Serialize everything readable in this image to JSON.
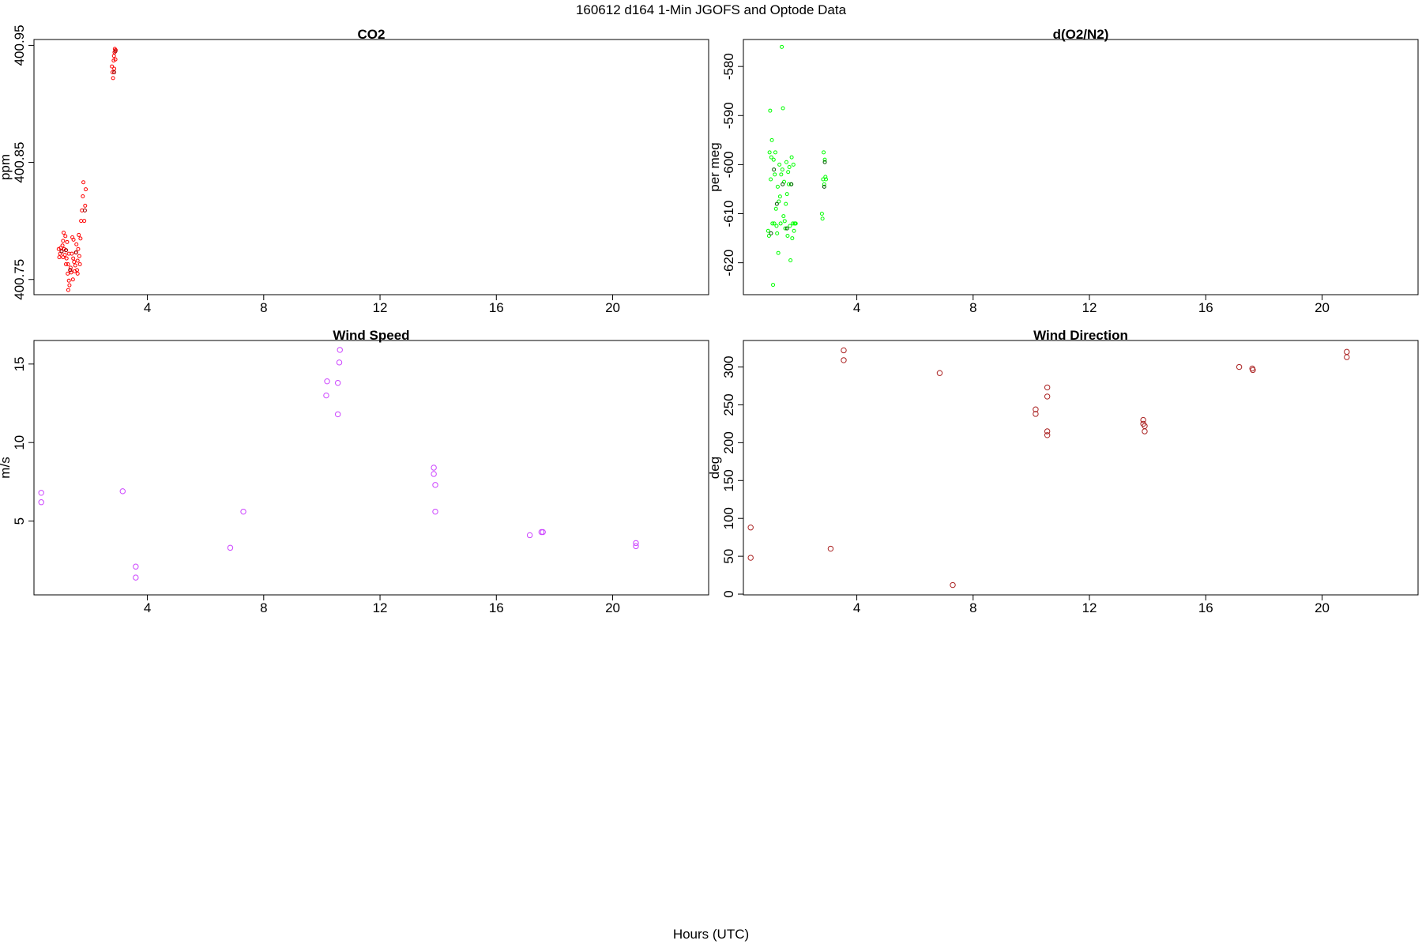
{
  "figure": {
    "title": "160612   d164   1-Min  JGOFS and Optode Data",
    "xlabel": "Hours (UTC)"
  },
  "chart_data": [
    {
      "id": "co2",
      "type": "scatter",
      "title": "CO2",
      "ylabel": "ppm",
      "xlim": [
        0.1,
        23.3
      ],
      "ylim": [
        400.737,
        400.955
      ],
      "xticks": [
        4,
        8,
        12,
        16,
        20
      ],
      "yticks": [
        400.75,
        400.85,
        400.95
      ],
      "yticklabels": [
        "400.75",
        "400.85",
        "400.95"
      ],
      "color": "#ff0000",
      "darkcolor": "#990000",
      "marker_r": 2,
      "points": [
        [
          0.95,
          400.776
        ],
        [
          0.97,
          400.769
        ],
        [
          1.0,
          400.772
        ],
        [
          1.02,
          400.777
        ],
        [
          1.05,
          400.774
        ],
        [
          1.08,
          400.779
        ],
        [
          1.1,
          400.783
        ],
        [
          1.12,
          400.79
        ],
        [
          1.14,
          400.776
        ],
        [
          1.16,
          400.771
        ],
        [
          1.18,
          400.787
        ],
        [
          1.2,
          400.775
        ],
        [
          1.22,
          400.768
        ],
        [
          1.24,
          400.782
        ],
        [
          1.26,
          400.755
        ],
        [
          1.27,
          400.763
        ],
        [
          1.28,
          400.741
        ],
        [
          1.3,
          400.749
        ],
        [
          1.32,
          400.745
        ],
        [
          1.34,
          400.758
        ],
        [
          1.36,
          400.76
        ],
        [
          1.38,
          400.756
        ],
        [
          1.4,
          400.772
        ],
        [
          1.42,
          400.786
        ],
        [
          1.44,
          400.75
        ],
        [
          1.46,
          400.784
        ],
        [
          1.48,
          400.765
        ],
        [
          1.5,
          400.757
        ],
        [
          1.52,
          400.762
        ],
        [
          1.54,
          400.773
        ],
        [
          1.56,
          400.78
        ],
        [
          1.58,
          400.758
        ],
        [
          1.6,
          400.766
        ],
        [
          1.62,
          400.776
        ],
        [
          1.64,
          400.788
        ],
        [
          1.66,
          400.77
        ],
        [
          1.68,
          400.763
        ],
        [
          1.7,
          400.785
        ],
        [
          1.72,
          400.8
        ],
        [
          1.75,
          400.809
        ],
        [
          1.78,
          400.821
        ],
        [
          1.8,
          400.833
        ],
        [
          1.83,
          400.8
        ],
        [
          1.86,
          400.813
        ],
        [
          1.88,
          400.827
        ],
        [
          1.3,
          400.772
        ],
        [
          1.45,
          400.768
        ],
        [
          1.6,
          400.755
        ],
        [
          1.1,
          400.769
        ],
        [
          1.2,
          400.763
        ],
        [
          2.78,
          400.932
        ],
        [
          2.8,
          400.927
        ],
        [
          2.82,
          400.922
        ],
        [
          2.84,
          400.937
        ],
        [
          2.85,
          400.941
        ],
        [
          2.86,
          400.93
        ],
        [
          2.87,
          400.944
        ],
        [
          2.88,
          400.947
        ],
        [
          2.9,
          400.938
        ],
        [
          2.91,
          400.946
        ]
      ],
      "dark_points": [
        [
          2.86,
          400.927
        ],
        [
          2.9,
          400.945
        ],
        [
          1.85,
          400.809
        ],
        [
          1.55,
          400.773
        ],
        [
          1.2,
          400.775
        ],
        [
          1.05,
          400.774
        ],
        [
          1.35,
          400.758
        ]
      ]
    },
    {
      "id": "o2n2",
      "type": "scatter",
      "title": "d(O2/N2)",
      "ylabel": "per meg",
      "xlim": [
        0.1,
        23.3
      ],
      "ylim": [
        -626.5,
        -574.5
      ],
      "xticks": [
        4,
        8,
        12,
        16,
        20
      ],
      "yticks": [
        -620,
        -610,
        -600,
        -590,
        -580
      ],
      "yticklabels": [
        "-620",
        "-610",
        "-600",
        "-590",
        "-580"
      ],
      "color": "#00ff00",
      "darkcolor": "#005500",
      "marker_r": 2,
      "points": [
        [
          0.95,
          -613.5
        ],
        [
          0.98,
          -614.5
        ],
        [
          1.0,
          -597.5
        ],
        [
          1.02,
          -589.0
        ],
        [
          1.04,
          -603.0
        ],
        [
          1.06,
          -598.5
        ],
        [
          1.08,
          -595.0
        ],
        [
          1.1,
          -612.0
        ],
        [
          1.12,
          -624.5
        ],
        [
          1.14,
          -599.0
        ],
        [
          1.16,
          -612.0
        ],
        [
          1.18,
          -602.0
        ],
        [
          1.2,
          -597.5
        ],
        [
          1.22,
          -609.0
        ],
        [
          1.24,
          -612.5
        ],
        [
          1.26,
          -614.0
        ],
        [
          1.28,
          -604.5
        ],
        [
          1.3,
          -618.0
        ],
        [
          1.32,
          -607.5
        ],
        [
          1.34,
          -600.0
        ],
        [
          1.36,
          -606.5
        ],
        [
          1.38,
          -612.0
        ],
        [
          1.4,
          -602.0
        ],
        [
          1.42,
          -576.0
        ],
        [
          1.44,
          -601.0
        ],
        [
          1.46,
          -588.5
        ],
        [
          1.48,
          -610.5
        ],
        [
          1.5,
          -603.5
        ],
        [
          1.52,
          -611.5
        ],
        [
          1.54,
          -613.0
        ],
        [
          1.56,
          -608.0
        ],
        [
          1.58,
          -599.5
        ],
        [
          1.6,
          -606.0
        ],
        [
          1.62,
          -614.5
        ],
        [
          1.64,
          -601.5
        ],
        [
          1.66,
          -604.0
        ],
        [
          1.68,
          -600.5
        ],
        [
          1.7,
          -612.5
        ],
        [
          1.72,
          -619.5
        ],
        [
          1.74,
          -604.0
        ],
        [
          1.76,
          -598.5
        ],
        [
          1.78,
          -615.0
        ],
        [
          1.8,
          -612.0
        ],
        [
          1.82,
          -600.0
        ],
        [
          1.84,
          -613.5
        ],
        [
          1.86,
          -612.0
        ],
        [
          1.88,
          -612.0
        ],
        [
          1.9,
          -612.0
        ],
        [
          2.8,
          -610.0
        ],
        [
          2.82,
          -611.0
        ],
        [
          2.84,
          -603.0
        ],
        [
          2.86,
          -597.5
        ],
        [
          2.88,
          -604.0
        ],
        [
          2.9,
          -599.0
        ],
        [
          2.92,
          -602.5
        ],
        [
          2.94,
          -603.0
        ]
      ],
      "dark_points": [
        [
          1.05,
          -614.0
        ],
        [
          1.15,
          -601.0
        ],
        [
          1.25,
          -608.0
        ],
        [
          1.45,
          -604.0
        ],
        [
          1.6,
          -613.0
        ],
        [
          1.75,
          -604.0
        ],
        [
          2.88,
          -604.5
        ],
        [
          2.9,
          -599.5
        ]
      ]
    },
    {
      "id": "wspd",
      "type": "scatter",
      "title": "Wind Speed",
      "ylabel": "m/s",
      "xlim": [
        0.1,
        23.3
      ],
      "ylim": [
        0.3,
        16.5
      ],
      "xticks": [
        4,
        8,
        12,
        16,
        20
      ],
      "yticks": [
        5,
        10,
        15
      ],
      "yticklabels": [
        "5",
        "10",
        "15"
      ],
      "color": "#cc44ff",
      "darkcolor": "#cc44ff",
      "marker_r": 3.2,
      "points": [
        [
          0.35,
          6.8
        ],
        [
          0.35,
          6.2
        ],
        [
          3.15,
          6.9
        ],
        [
          3.6,
          2.1
        ],
        [
          3.6,
          1.4
        ],
        [
          6.85,
          3.3
        ],
        [
          7.3,
          5.6
        ],
        [
          10.15,
          13.0
        ],
        [
          10.18,
          13.9
        ],
        [
          10.55,
          11.8
        ],
        [
          10.55,
          13.8
        ],
        [
          10.6,
          15.1
        ],
        [
          10.62,
          15.9
        ],
        [
          13.85,
          8.4
        ],
        [
          13.85,
          8.0
        ],
        [
          13.9,
          7.3
        ],
        [
          13.9,
          5.6
        ],
        [
          17.15,
          4.1
        ],
        [
          17.55,
          4.3
        ],
        [
          17.6,
          4.3
        ],
        [
          20.8,
          3.6
        ],
        [
          20.8,
          3.4
        ]
      ],
      "dark_points": []
    },
    {
      "id": "wdir",
      "type": "scatter",
      "title": "Wind Direction",
      "ylabel": "deg",
      "xlim": [
        0.1,
        23.3
      ],
      "ylim": [
        -1,
        335
      ],
      "xticks": [
        4,
        8,
        12,
        16,
        20
      ],
      "yticks": [
        0,
        50,
        100,
        150,
        200,
        250,
        300
      ],
      "yticklabels": [
        "0",
        "50",
        "100",
        "150",
        "200",
        "250",
        "300"
      ],
      "color": "#aa2222",
      "darkcolor": "#aa2222",
      "marker_r": 3.2,
      "points": [
        [
          0.35,
          88
        ],
        [
          0.35,
          48
        ],
        [
          3.1,
          60
        ],
        [
          3.55,
          322
        ],
        [
          3.55,
          309
        ],
        [
          6.85,
          292
        ],
        [
          7.3,
          12
        ],
        [
          10.15,
          244
        ],
        [
          10.15,
          238
        ],
        [
          10.55,
          273
        ],
        [
          10.55,
          261
        ],
        [
          10.55,
          215
        ],
        [
          10.55,
          210
        ],
        [
          13.85,
          230
        ],
        [
          13.85,
          225
        ],
        [
          13.9,
          222
        ],
        [
          13.9,
          215
        ],
        [
          17.15,
          300
        ],
        [
          17.6,
          298
        ],
        [
          17.62,
          296
        ],
        [
          20.85,
          320
        ],
        [
          20.85,
          313
        ]
      ],
      "dark_points": []
    }
  ]
}
